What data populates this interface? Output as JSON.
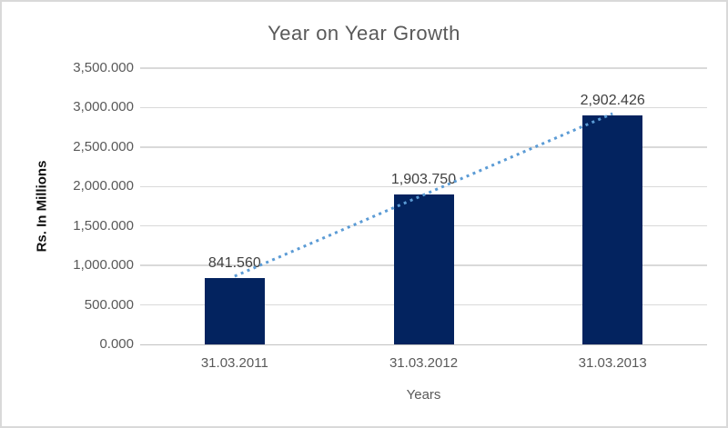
{
  "window": {
    "background": "#ffffff",
    "frame_border_color": "#d9d9d9"
  },
  "chart_data": {
    "type": "bar",
    "title": "Year on Year Growth",
    "categories": [
      "31.03.2011",
      "31.03.2012",
      "31.03.2013"
    ],
    "values": [
      841.56,
      1903.75,
      2902.426
    ],
    "data_labels": [
      "841.560",
      "1,903.750",
      "2,902.426"
    ],
    "xlabel": "Years",
    "ylabel": "Rs. In Millions",
    "ylim": [
      0,
      3500
    ],
    "ytick_step": 500,
    "ytick_labels": [
      "0.000",
      "500.000",
      "1,000.000",
      "1,500.000",
      "2,000.000",
      "2,500.000",
      "3,000.000",
      "3,500.000"
    ],
    "grid": true,
    "legend_position": "none",
    "trendline": {
      "type": "linear",
      "style": "dotted"
    },
    "colors": {
      "bar": "#03235f",
      "trendline": "#5b9bd5",
      "gridline": "#d9d9d9",
      "axis_line": "#c2c2c2",
      "title": "#595959",
      "tick_label": "#595959",
      "data_label": "#404040",
      "y_axis_title": "#111111",
      "x_axis_title": "#595959"
    }
  }
}
